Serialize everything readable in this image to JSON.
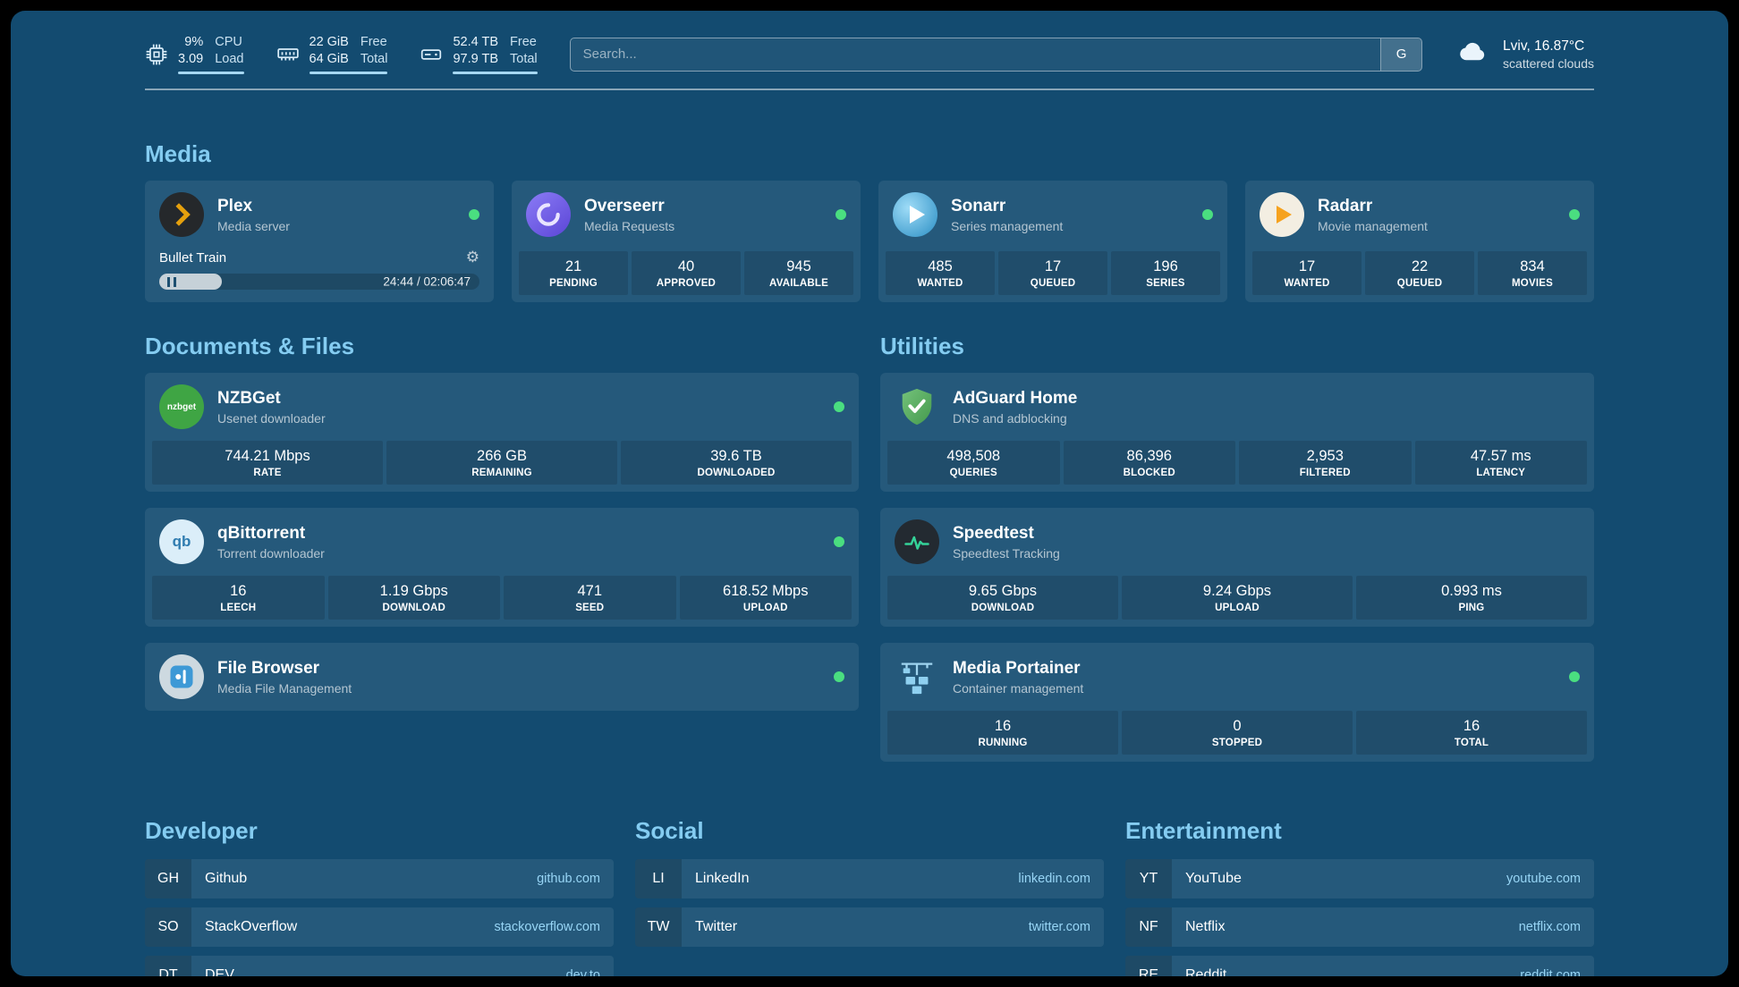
{
  "colors": {
    "background": "#134b70",
    "heading": "#84ccf1",
    "status_ok": "#4ade80",
    "bookmark_link": "#97d5f5",
    "plex_amber": "#e5a00d"
  },
  "topbar": {
    "resources": [
      {
        "name": "cpu",
        "values": [
          "9%",
          "3.09"
        ],
        "labels": [
          "CPU",
          "Load"
        ]
      },
      {
        "name": "memory",
        "values": [
          "22 GiB",
          "64 GiB"
        ],
        "labels": [
          "Free",
          "Total"
        ]
      },
      {
        "name": "disk",
        "values": [
          "52.4 TB",
          "97.9 TB"
        ],
        "labels": [
          "Free",
          "Total"
        ]
      }
    ],
    "search": {
      "placeholder": "Search...",
      "provider": "G"
    },
    "weather": {
      "location": "Lviv, 16.87°C",
      "condition": "scattered clouds"
    }
  },
  "icon_text": {
    "nzbget": "nzbget",
    "qbittorrent": "qb"
  },
  "sections": {
    "media": {
      "title": "Media",
      "plex": {
        "name": "Plex",
        "subtitle": "Media server",
        "now_playing": "Bullet Train",
        "time": "24:44 / 02:06:47",
        "progress_pct": 19.5
      },
      "overseerr": {
        "name": "Overseerr",
        "subtitle": "Media Requests",
        "stats": [
          {
            "value": "21",
            "label": "PENDING"
          },
          {
            "value": "40",
            "label": "APPROVED"
          },
          {
            "value": "945",
            "label": "AVAILABLE"
          }
        ]
      },
      "sonarr": {
        "name": "Sonarr",
        "subtitle": "Series management",
        "stats": [
          {
            "value": "485",
            "label": "WANTED"
          },
          {
            "value": "17",
            "label": "QUEUED"
          },
          {
            "value": "196",
            "label": "SERIES"
          }
        ]
      },
      "radarr": {
        "name": "Radarr",
        "subtitle": "Movie management",
        "stats": [
          {
            "value": "17",
            "label": "WANTED"
          },
          {
            "value": "22",
            "label": "QUEUED"
          },
          {
            "value": "834",
            "label": "MOVIES"
          }
        ]
      }
    },
    "documents": {
      "title": "Documents & Files",
      "nzbget": {
        "name": "NZBGet",
        "subtitle": "Usenet downloader",
        "stats": [
          {
            "value": "744.21 Mbps",
            "label": "RATE"
          },
          {
            "value": "266 GB",
            "label": "REMAINING"
          },
          {
            "value": "39.6 TB",
            "label": "DOWNLOADED"
          }
        ]
      },
      "qbittorrent": {
        "name": "qBittorrent",
        "subtitle": "Torrent downloader",
        "stats": [
          {
            "value": "16",
            "label": "LEECH"
          },
          {
            "value": "1.19 Gbps",
            "label": "DOWNLOAD"
          },
          {
            "value": "471",
            "label": "SEED"
          },
          {
            "value": "618.52 Mbps",
            "label": "UPLOAD"
          }
        ]
      },
      "filebrowser": {
        "name": "File Browser",
        "subtitle": "Media File Management"
      }
    },
    "utilities": {
      "title": "Utilities",
      "adguard": {
        "name": "AdGuard Home",
        "subtitle": "DNS and adblocking",
        "stats": [
          {
            "value": "498,508",
            "label": "QUERIES"
          },
          {
            "value": "86,396",
            "label": "BLOCKED"
          },
          {
            "value": "2,953",
            "label": "FILTERED"
          },
          {
            "value": "47.57 ms",
            "label": "LATENCY"
          }
        ]
      },
      "speedtest": {
        "name": "Speedtest",
        "subtitle": "Speedtest Tracking",
        "stats": [
          {
            "value": "9.65 Gbps",
            "label": "DOWNLOAD"
          },
          {
            "value": "9.24 Gbps",
            "label": "UPLOAD"
          },
          {
            "value": "0.993 ms",
            "label": "PING"
          }
        ]
      },
      "portainer": {
        "name": "Media Portainer",
        "subtitle": "Container management",
        "stats": [
          {
            "value": "16",
            "label": "RUNNING"
          },
          {
            "value": "0",
            "label": "STOPPED"
          },
          {
            "value": "16",
            "label": "TOTAL"
          }
        ]
      }
    }
  },
  "bookmarks": [
    {
      "title": "Developer",
      "items": [
        {
          "abbr": "GH",
          "name": "Github",
          "domain": "github.com"
        },
        {
          "abbr": "SO",
          "name": "StackOverflow",
          "domain": "stackoverflow.com"
        },
        {
          "abbr": "DT",
          "name": "DEV",
          "domain": "dev.to"
        }
      ]
    },
    {
      "title": "Social",
      "items": [
        {
          "abbr": "LI",
          "name": "LinkedIn",
          "domain": "linkedin.com"
        },
        {
          "abbr": "TW",
          "name": "Twitter",
          "domain": "twitter.com"
        }
      ]
    },
    {
      "title": "Entertainment",
      "items": [
        {
          "abbr": "YT",
          "name": "YouTube",
          "domain": "youtube.com"
        },
        {
          "abbr": "NF",
          "name": "Netflix",
          "domain": "netflix.com"
        },
        {
          "abbr": "RE",
          "name": "Reddit",
          "domain": "reddit.com"
        }
      ]
    }
  ]
}
